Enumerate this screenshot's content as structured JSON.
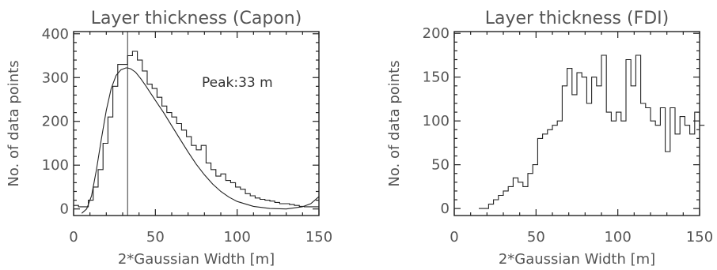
{
  "chart_data": [
    {
      "type": "histogram",
      "title": "Layer thickness (Capon)",
      "xlabel": "2*Gaussian Width [m]",
      "ylabel": "No. of data points",
      "xlim": [
        0,
        150
      ],
      "ylim": [
        -15,
        405
      ],
      "xticks": [
        0,
        50,
        100,
        150
      ],
      "yticks": [
        0,
        100,
        200,
        300,
        400
      ],
      "bin_width": 3,
      "bin_start": 0,
      "values": [
        8,
        5,
        5,
        20,
        50,
        90,
        150,
        210,
        280,
        330,
        330,
        350,
        360,
        340,
        315,
        285,
        275,
        255,
        235,
        220,
        210,
        195,
        180,
        165,
        145,
        135,
        145,
        105,
        90,
        75,
        80,
        65,
        60,
        50,
        45,
        35,
        30,
        25,
        22,
        20,
        18,
        15,
        12,
        12,
        10,
        8,
        6,
        5,
        5,
        5
      ],
      "fit_curve": {
        "x": [
          5,
          8,
          11,
          14,
          17,
          20,
          23,
          26,
          29,
          32,
          33,
          35,
          38,
          41,
          44,
          47,
          50,
          55,
          60,
          65,
          70,
          75,
          80,
          85,
          90,
          95,
          100,
          110,
          120,
          130,
          140,
          145,
          150
        ],
        "y": [
          -10,
          0,
          30,
          90,
          160,
          225,
          275,
          305,
          318,
          322,
          322,
          320,
          312,
          298,
          282,
          265,
          248,
          220,
          190,
          160,
          130,
          102,
          78,
          57,
          40,
          27,
          17,
          6,
          1,
          0,
          5,
          12,
          28
        ]
      },
      "peak_line_x": 33,
      "annotation": "Peak:33 m"
    },
    {
      "type": "histogram",
      "title": "Layer thickness (FDI)",
      "xlabel": "2*Gaussian Width [m]",
      "ylabel": "No. of data points",
      "xlim": [
        0,
        150
      ],
      "ylim": [
        -8,
        202
      ],
      "xticks": [
        0,
        50,
        100,
        150
      ],
      "yticks": [
        0,
        50,
        100,
        150,
        200
      ],
      "bin_width": 3,
      "bin_start": 15,
      "values": [
        0,
        0,
        5,
        10,
        15,
        20,
        25,
        35,
        30,
        25,
        40,
        50,
        80,
        85,
        90,
        95,
        100,
        140,
        160,
        130,
        155,
        150,
        120,
        150,
        140,
        175,
        110,
        100,
        110,
        100,
        170,
        140,
        175,
        120,
        115,
        100,
        95,
        115,
        65,
        115,
        85,
        105,
        95,
        85,
        110,
        95
      ]
    }
  ]
}
